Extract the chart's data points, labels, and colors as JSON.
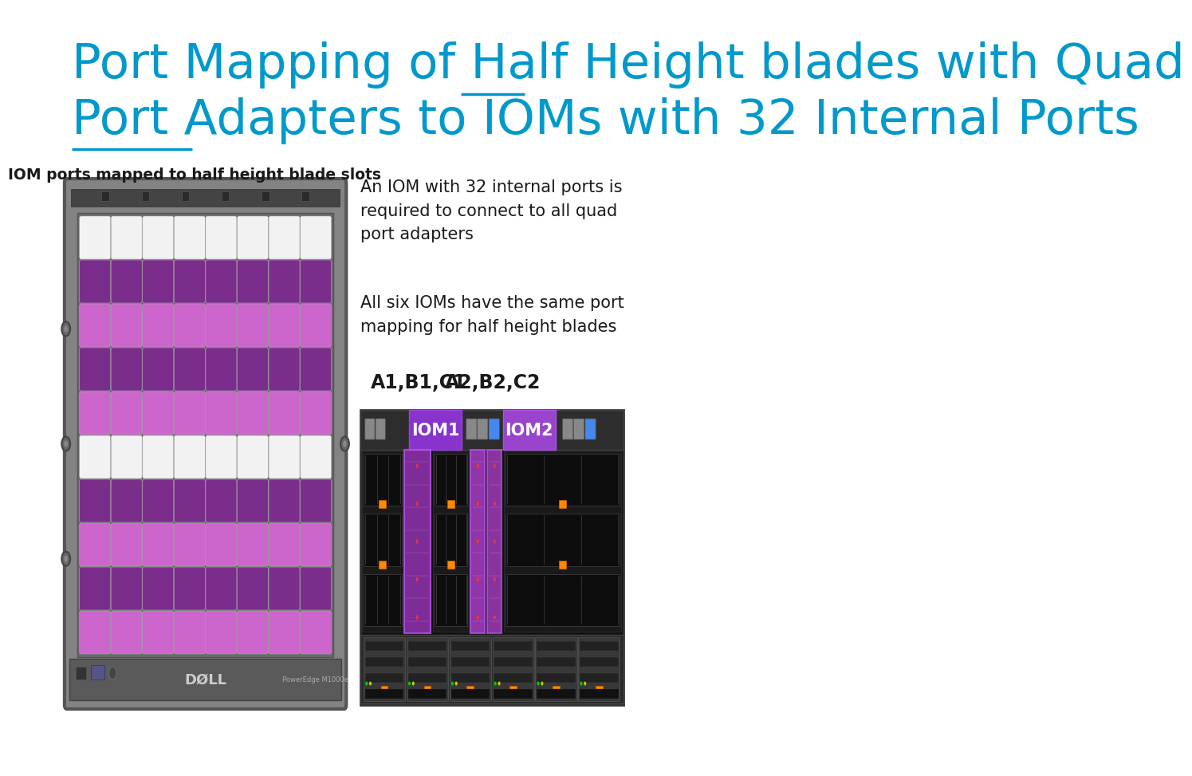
{
  "title_line1": "Port Mapping of Half Height blades with Quad",
  "title_line2": "Port Adapters to IOMs with 32 Internal Ports",
  "title_color": "#0099cc",
  "subtitle_left": "IOM ports mapped to half height blade slots",
  "desc1": "An IOM with 32 internal ports is\nrequired to connect to all quad\nport adapters",
  "desc2": "All six IOMs have the same port\nmapping for half height blades",
  "label_a1b1c1": "A1,B1,C1",
  "label_a2b2c2": "A2,B2,C2",
  "iom1_label": "IOM1",
  "iom2_label": "IOM2",
  "bg_color": "#ffffff",
  "slot_white": "#f2f2f2",
  "slot_purple_dark": "#7B2D8B",
  "slot_purple_light": "#CC66CC",
  "chassis_frame": "#8a8a8a",
  "chassis_inner": "#9a9a9a",
  "chassis_dark": "#555555",
  "iom_purple_solid": "#8B30C0",
  "iom_purple_transparent": "#9B40CC",
  "grid_rows": 10,
  "grid_cols": 8,
  "row_colors": [
    "white",
    "dark",
    "light",
    "dark",
    "light",
    "white",
    "dark",
    "light",
    "dark",
    "light"
  ]
}
